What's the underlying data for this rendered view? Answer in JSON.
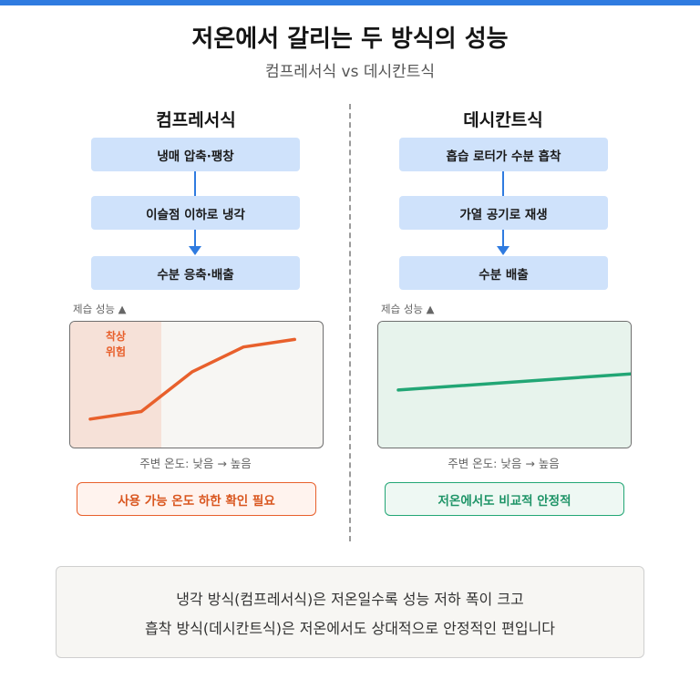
{
  "header": {
    "title": "저온에서 갈리는 두 방식의 성능",
    "subtitle": "컴프레서식 vs 데시칸트식"
  },
  "left": {
    "title": "컴프레서식",
    "steps": [
      "냉매 압축·팽창",
      "이슬점 이하로 냉각",
      "수분 응축·배출"
    ],
    "chart_ylabel": "제습 성능 ▲",
    "chart_xlabel": "주변 온도: 낮음 → 높음",
    "risk_label": "착상\n위험",
    "badge": "사용 가능 온도 하한 확인 필요",
    "line_color": "#e8602c",
    "region_color": "#f6e1d8"
  },
  "right": {
    "title": "데시칸트식",
    "steps": [
      "흡습 로터가 수분 흡착",
      "가열 공기로 재생",
      "수분 배출"
    ],
    "chart_ylabel": "제습 성능 ▲",
    "chart_xlabel": "주변 온도: 낮음 → 높음",
    "badge": "저온에서도 비교적 안정적",
    "line_color": "#22a675",
    "region_color": "#e7f3ec"
  },
  "chart_data": [
    {
      "type": "line",
      "title": "컴프레서식",
      "ylabel": "제습 성능 ▲",
      "xlabel": "주변 온도: 낮음 → 높음",
      "x": [
        0,
        1,
        2,
        3,
        4
      ],
      "y": [
        0.18,
        0.25,
        0.62,
        0.85,
        0.92
      ],
      "xlim": [
        0,
        4.3
      ],
      "ylim": [
        0,
        1
      ]
    },
    {
      "type": "line",
      "title": "데시칸트식",
      "ylabel": "제습 성능 ▲",
      "xlabel": "주변 온도: 낮음 → 높음",
      "x": [
        0,
        4.3
      ],
      "y": [
        0.45,
        0.6
      ],
      "xlim": [
        0,
        4.3
      ],
      "ylim": [
        0,
        1
      ]
    }
  ],
  "summary": {
    "line1": "냉각 방식(컴프레서식)은 저온일수록 성능 저하 폭이 크고",
    "line2": "흡착 방식(데시칸트식)은 저온에서도 상대적으로 안정적인 편입니다"
  }
}
